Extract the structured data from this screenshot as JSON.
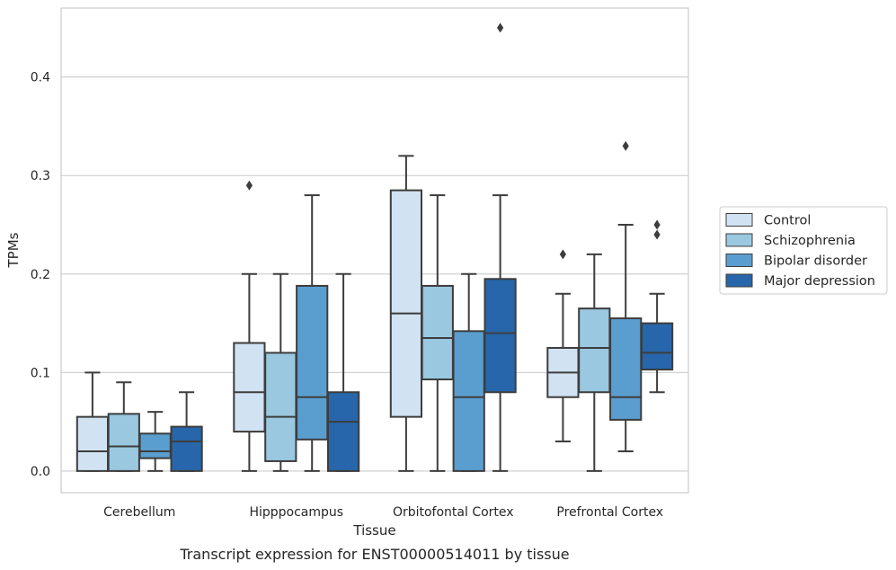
{
  "caption": "Transcript expression for ENST00000514011 by tissue",
  "chart_data": {
    "type": "boxplot",
    "xlabel": "Tissue",
    "ylabel": "TPMs",
    "ylim": [
      -0.022,
      0.47
    ],
    "yticks": [
      0.0,
      0.1,
      0.2,
      0.3,
      0.4
    ],
    "ytick_labels": [
      "0.0",
      "0.1",
      "0.2",
      "0.3",
      "0.4"
    ],
    "grid": "horizontal",
    "legend_position": "right",
    "categories": [
      "Cerebellum",
      "Hipppocampus",
      "Orbitofontal Cortex",
      "Prefrontal Cortex"
    ],
    "series": [
      {
        "name": "Control",
        "color": "#d1e2f2",
        "boxes": [
          {
            "whislo": 0.0,
            "q1": 0.0,
            "med": 0.02,
            "q3": 0.055,
            "whishi": 0.1,
            "fliers": []
          },
          {
            "whislo": 0.0,
            "q1": 0.04,
            "med": 0.08,
            "q3": 0.13,
            "whishi": 0.2,
            "fliers": [
              0.29
            ]
          },
          {
            "whislo": 0.0,
            "q1": 0.055,
            "med": 0.16,
            "q3": 0.285,
            "whishi": 0.32,
            "fliers": []
          },
          {
            "whislo": 0.03,
            "q1": 0.075,
            "med": 0.1,
            "q3": 0.125,
            "whishi": 0.18,
            "fliers": [
              0.22
            ]
          }
        ]
      },
      {
        "name": "Schizophrenia",
        "color": "#9ac8e0",
        "boxes": [
          {
            "whislo": 0.0,
            "q1": 0.0,
            "med": 0.025,
            "q3": 0.058,
            "whishi": 0.09,
            "fliers": []
          },
          {
            "whislo": 0.0,
            "q1": 0.01,
            "med": 0.055,
            "q3": 0.12,
            "whishi": 0.2,
            "fliers": []
          },
          {
            "whislo": 0.0,
            "q1": 0.093,
            "med": 0.135,
            "q3": 0.188,
            "whishi": 0.28,
            "fliers": []
          },
          {
            "whislo": 0.0,
            "q1": 0.08,
            "med": 0.125,
            "q3": 0.165,
            "whishi": 0.22,
            "fliers": []
          }
        ]
      },
      {
        "name": "Bipolar disorder",
        "color": "#5a9ecf",
        "boxes": [
          {
            "whislo": 0.0,
            "q1": 0.013,
            "med": 0.02,
            "q3": 0.038,
            "whishi": 0.06,
            "fliers": []
          },
          {
            "whislo": 0.0,
            "q1": 0.032,
            "med": 0.075,
            "q3": 0.188,
            "whishi": 0.28,
            "fliers": []
          },
          {
            "whislo": 0.0,
            "q1": 0.0,
            "med": 0.075,
            "q3": 0.142,
            "whishi": 0.2,
            "fliers": []
          },
          {
            "whislo": 0.02,
            "q1": 0.052,
            "med": 0.075,
            "q3": 0.155,
            "whishi": 0.25,
            "fliers": [
              0.33
            ]
          }
        ]
      },
      {
        "name": "Major depression",
        "color": "#2766ab",
        "boxes": [
          {
            "whislo": 0.0,
            "q1": 0.0,
            "med": 0.03,
            "q3": 0.045,
            "whishi": 0.08,
            "fliers": []
          },
          {
            "whislo": 0.0,
            "q1": 0.0,
            "med": 0.05,
            "q3": 0.08,
            "whishi": 0.2,
            "fliers": []
          },
          {
            "whislo": 0.0,
            "q1": 0.08,
            "med": 0.14,
            "q3": 0.195,
            "whishi": 0.28,
            "fliers": [
              0.45
            ]
          },
          {
            "whislo": 0.08,
            "q1": 0.103,
            "med": 0.12,
            "q3": 0.15,
            "whishi": 0.18,
            "fliers": [
              0.24,
              0.25
            ]
          }
        ]
      }
    ]
  }
}
